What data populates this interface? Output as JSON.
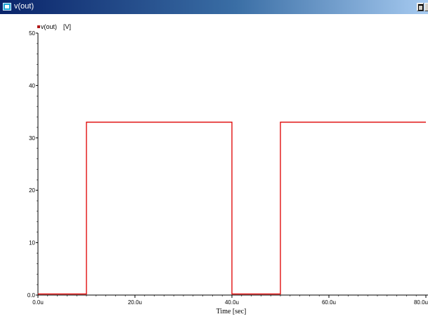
{
  "window": {
    "title": "v(out)"
  },
  "legend": {
    "series": "v(out)",
    "unit": "[V]",
    "swatch_color": "#b01818"
  },
  "colors": {
    "trace": "#e01010",
    "axis": "#000000"
  },
  "chart_data": {
    "type": "line",
    "xlabel": "Time [sec]",
    "xlim": [
      0,
      80
    ],
    "ylim": [
      0,
      50
    ],
    "x_ticks": [
      "0.0u",
      "20.0u",
      "40.0u",
      "60.0u",
      "80.0u"
    ],
    "y_ticks": [
      "0.0",
      "10",
      "20",
      "30",
      "40",
      "50"
    ],
    "grid": false,
    "series": [
      {
        "name": "v(out)",
        "x": [
          0,
          10,
          10,
          40,
          40,
          50,
          50,
          80
        ],
        "y": [
          0.2,
          0.2,
          33,
          33,
          0.2,
          0.2,
          33,
          33
        ]
      }
    ]
  }
}
